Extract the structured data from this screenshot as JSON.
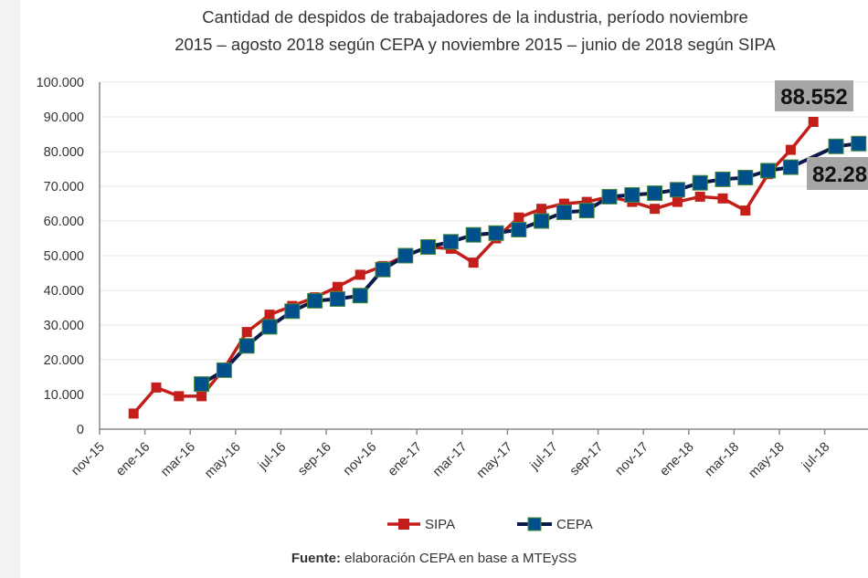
{
  "chart_data": {
    "type": "line",
    "title_line1": "Cantidad de despidos de trabajadores de la industria, período noviembre",
    "title_line2": "2015 – agosto 2018 según CEPA y noviembre 2015 – junio de 2018 según SIPA",
    "xlabel": "",
    "ylabel": "",
    "ylim": [
      0,
      100000
    ],
    "y_ticks": [
      "0",
      "10.000",
      "20.000",
      "30.000",
      "40.000",
      "50.000",
      "60.000",
      "70.000",
      "80.000",
      "90.000",
      "100.000"
    ],
    "x_tick_labels": [
      "nov-15",
      "ene-16",
      "mar-16",
      "may-16",
      "jul-16",
      "sep-16",
      "nov-16",
      "ene-17",
      "mar-17",
      "may-17",
      "jul-17",
      "sep-17",
      "nov-17",
      "ene-18",
      "mar-18",
      "may-18",
      "jul-18"
    ],
    "months": [
      "nov-15",
      "dic-15",
      "ene-16",
      "feb-16",
      "mar-16",
      "abr-16",
      "may-16",
      "jun-16",
      "jul-16",
      "ago-16",
      "sep-16",
      "oct-16",
      "nov-16",
      "dic-16",
      "ene-17",
      "feb-17",
      "mar-17",
      "abr-17",
      "may-17",
      "jun-17",
      "jul-17",
      "ago-17",
      "sep-17",
      "oct-17",
      "nov-17",
      "dic-17",
      "ene-18",
      "feb-18",
      "mar-18",
      "abr-18",
      "may-18",
      "jun-18",
      "jul-18",
      "ago-18"
    ],
    "grid": true,
    "legend_placement": "bottom",
    "series": [
      {
        "name": "SIPA",
        "color": "#c41e1a",
        "start_month": "dic-15",
        "values": [
          4500,
          12000,
          9500,
          9500,
          17500,
          28000,
          33000,
          35500,
          38000,
          41000,
          44500,
          47000,
          50000,
          52500,
          52000,
          48000,
          55000,
          61000,
          63500,
          65000,
          65500,
          67000,
          65500,
          63500,
          65500,
          67000,
          66500,
          63000,
          73500,
          80500,
          88552
        ]
      },
      {
        "name": "CEPA",
        "color": "#0b1a4d",
        "marker_color": "#00508c",
        "start_month": "mar-16",
        "values": [
          13000,
          17000,
          24000,
          29500,
          34000,
          37000,
          37500,
          38500,
          46000,
          50000,
          52500,
          54000,
          56000,
          56500,
          57500,
          60000,
          62500,
          63000,
          67000,
          67500,
          68000,
          69000,
          71000,
          72000,
          72500,
          74500,
          75500,
          null,
          81500,
          82300
        ]
      }
    ],
    "annotations": [
      {
        "series": "SIPA",
        "text": "88.552"
      },
      {
        "series": "CEPA",
        "text": "82.28"
      }
    ]
  },
  "source": {
    "bold": "Fuente:",
    "text": " elaboración CEPA en base a MTEySS"
  }
}
